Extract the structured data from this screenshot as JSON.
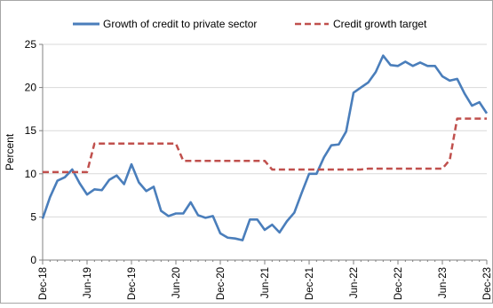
{
  "chart_data": {
    "type": "line",
    "title": "",
    "xlabel": "",
    "ylabel": "Percent",
    "ylim": [
      0,
      25
    ],
    "yticks": [
      0,
      5,
      10,
      15,
      20,
      25
    ],
    "grid": "horizontal",
    "legend_position": "top",
    "xtick_labels": [
      "Dec-18",
      "Jun-19",
      "Dec-19",
      "Jun-20",
      "Dec-20",
      "Jun-21",
      "Dec-21",
      "Jun-22",
      "Dec-22",
      "Jun-23",
      "Dec-23"
    ],
    "x_start": "Dec-18",
    "x_end": "Dec-23",
    "series": [
      {
        "name": "Growth of credit to private sector",
        "style": "solid",
        "color": "#4a7ebb",
        "values": [
          4.8,
          7.3,
          9.2,
          9.6,
          10.5,
          8.9,
          7.6,
          8.2,
          8.1,
          9.3,
          9.8,
          8.8,
          11.1,
          9.0,
          8.0,
          8.5,
          5.7,
          5.1,
          5.4,
          5.4,
          6.7,
          5.2,
          4.9,
          5.1,
          3.1,
          2.6,
          2.5,
          2.3,
          4.7,
          4.7,
          3.5,
          4.1,
          3.2,
          4.5,
          5.5,
          7.8,
          10.0,
          10.0,
          11.9,
          13.3,
          13.4,
          14.9,
          19.4,
          20.0,
          20.6,
          21.8,
          23.7,
          22.6,
          22.5,
          23.0,
          22.5,
          22.9,
          22.5,
          22.5,
          21.3,
          20.8,
          21.0,
          19.3,
          17.9,
          18.3,
          17.0
        ]
      },
      {
        "name": "Credit growth target",
        "style": "dashed",
        "color": "#c0504d",
        "values": [
          10.2,
          10.2,
          10.2,
          10.2,
          10.2,
          10.2,
          10.2,
          13.5,
          13.5,
          13.5,
          13.5,
          13.5,
          13.5,
          13.5,
          13.5,
          13.5,
          13.5,
          13.5,
          13.5,
          11.5,
          11.5,
          11.5,
          11.5,
          11.5,
          11.5,
          11.5,
          11.5,
          11.5,
          11.5,
          11.5,
          11.5,
          10.5,
          10.5,
          10.5,
          10.5,
          10.5,
          10.5,
          10.5,
          10.5,
          10.5,
          10.5,
          10.5,
          10.5,
          10.5,
          10.6,
          10.6,
          10.6,
          10.6,
          10.6,
          10.6,
          10.6,
          10.6,
          10.6,
          10.6,
          10.6,
          11.6,
          16.4,
          16.4,
          16.4,
          16.4,
          16.4
        ]
      }
    ]
  }
}
